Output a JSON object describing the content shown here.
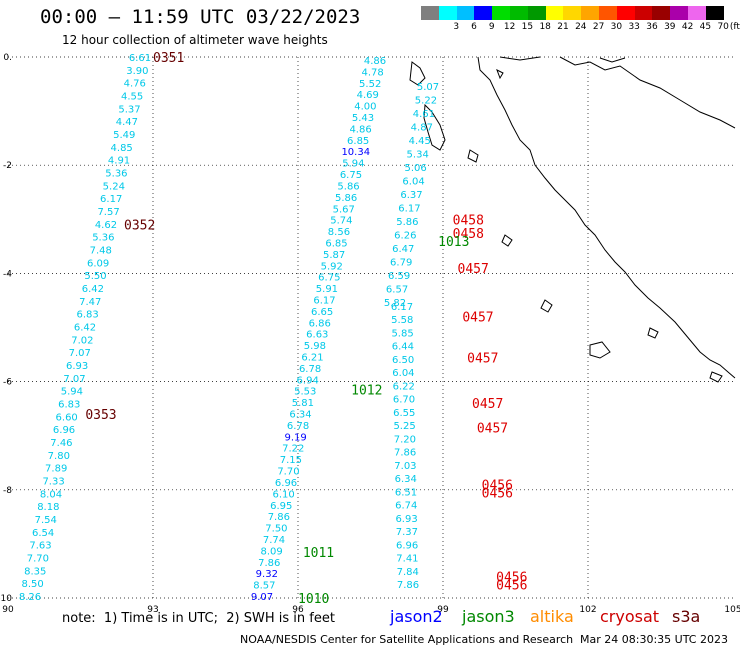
{
  "title": "00:00 — 11:59 UTC 03/22/2023",
  "subtitle": "12 hour collection of altimeter wave heights",
  "legend": {
    "unit": "(ft)",
    "bins": [
      {
        "label": "",
        "color": "#7f7f7f"
      },
      {
        "label": "3",
        "color": "#00ffff"
      },
      {
        "label": "6",
        "color": "#00bfff"
      },
      {
        "label": "9",
        "color": "#0000ff"
      },
      {
        "label": "12",
        "color": "#00dd00"
      },
      {
        "label": "15",
        "color": "#00bb00"
      },
      {
        "label": "18",
        "color": "#009900"
      },
      {
        "label": "21",
        "color": "#ffff00"
      },
      {
        "label": "24",
        "color": "#ffd700"
      },
      {
        "label": "27",
        "color": "#ffa500"
      },
      {
        "label": "30",
        "color": "#ff5500"
      },
      {
        "label": "33",
        "color": "#ff0000"
      },
      {
        "label": "36",
        "color": "#cc0000"
      },
      {
        "label": "39",
        "color": "#990000"
      },
      {
        "label": "42",
        "color": "#aa00aa"
      },
      {
        "label": "45",
        "color": "#ee66ee"
      },
      {
        "label": "70",
        "color": "#000000"
      }
    ]
  },
  "axes": {
    "lon_ticks": [
      "90",
      "93",
      "96",
      "99",
      "102",
      "105"
    ],
    "lat_ticks": [
      "0.",
      "-2",
      "-4",
      "-6",
      "-8",
      "-10"
    ]
  },
  "colors": {
    "jason2": "#0000ff",
    "jason3": "#008800",
    "altika": "#ff8c00",
    "cryosat": "#cc0000",
    "s3a": "#660000",
    "wave_light": "#00c8e8",
    "pass_label_dark": "#660000",
    "pass_label_red": "#dd0000",
    "pass_label_green": "#008800"
  },
  "tracks": [
    {
      "x0": 140,
      "y0": 57,
      "x1": 30,
      "y1": 596,
      "values": [
        "6.61",
        "3.90",
        "4.76",
        "4.55",
        "5.37",
        "4.47",
        "5.49",
        "4.85",
        "4.91",
        "5.36",
        "5.24",
        "6.17",
        "7.57",
        "4.62",
        "5.36",
        "7.48",
        "6.09",
        "5.50",
        "6.42",
        "7.47",
        "6.83",
        "6.42",
        "7.02",
        "7.07",
        "6.93",
        "7.07",
        "5.94",
        "6.83",
        "6.60",
        "6.96",
        "7.46",
        "7.80",
        "7.89",
        "7.33",
        "8.04",
        "8.18",
        "7.54",
        "6.54",
        "7.63",
        "7.70",
        "8.35",
        "8.50",
        "8.26"
      ]
    },
    {
      "x0": 375,
      "y0": 60,
      "x1": 262,
      "y1": 596,
      "values": [
        "4.86",
        "4.78",
        "5.52",
        "4.69",
        "4.00",
        "5.43",
        "4.86",
        "6.85",
        "10.34",
        "5.94",
        "6.75",
        "5.86",
        "5.86",
        "5.67",
        "5.74",
        "8.56",
        "6.85",
        "5.87",
        "5.92",
        "6.75",
        "5.91",
        "6.17",
        "6.65",
        "6.86",
        "6.63",
        "5.98",
        "6.21",
        "6.78",
        "6.94",
        "5.53",
        "5.81",
        "6.34",
        "6.78",
        "9.19",
        "7.22",
        "7.15",
        "7.70",
        "6.96",
        "6.10",
        "6.95",
        "7.86",
        "7.50",
        "7.74",
        "8.09",
        "7.86",
        "9.32",
        "8.57",
        "9.07"
      ]
    },
    {
      "x0": 428,
      "y0": 86,
      "x1": 395,
      "y1": 302,
      "values": [
        "5.07",
        "5.22",
        "4.61",
        "4.87",
        "4.45",
        "5.34",
        "5.06",
        "6.04",
        "6.37",
        "6.17",
        "5.86",
        "6.26",
        "6.47",
        "6.79",
        "6.59",
        "6.57",
        "5.82"
      ]
    },
    {
      "x0": 402,
      "y0": 306,
      "x1": 408,
      "y1": 584,
      "values": [
        "6.17",
        "5.58",
        "5.85",
        "6.44",
        "6.50",
        "6.04",
        "6.22",
        "6.70",
        "6.55",
        "5.25",
        "7.20",
        "7.86",
        "7.03",
        "6.34",
        "6.51",
        "6.74",
        "6.93",
        "7.37",
        "6.96",
        "7.41",
        "7.84",
        "7.86"
      ]
    }
  ],
  "pass_labels": [
    {
      "text": "0351",
      "lon": 93.0,
      "lat": 0.0,
      "kind": "dark"
    },
    {
      "text": "0352",
      "lon": 92.4,
      "lat": -3.1,
      "kind": "dark"
    },
    {
      "text": "0353",
      "lon": 91.6,
      "lat": -6.6,
      "kind": "dark"
    },
    {
      "text": "0458",
      "lon": 99.2,
      "lat": -3.0,
      "kind": "red"
    },
    {
      "text": "0458",
      "lon": 99.2,
      "lat": -3.25,
      "kind": "red"
    },
    {
      "text": "1013",
      "lon": 98.9,
      "lat": -3.4,
      "kind": "green"
    },
    {
      "text": "0457",
      "lon": 99.3,
      "lat": -3.9,
      "kind": "red"
    },
    {
      "text": "0457",
      "lon": 99.4,
      "lat": -4.8,
      "kind": "red"
    },
    {
      "text": "0457",
      "lon": 99.5,
      "lat": -5.55,
      "kind": "red"
    },
    {
      "text": "1012",
      "lon": 97.1,
      "lat": -6.15,
      "kind": "green"
    },
    {
      "text": "0457",
      "lon": 99.6,
      "lat": -6.4,
      "kind": "red"
    },
    {
      "text": "0457",
      "lon": 99.7,
      "lat": -6.85,
      "kind": "red"
    },
    {
      "text": "0456",
      "lon": 99.8,
      "lat": -7.9,
      "kind": "red"
    },
    {
      "text": "0456",
      "lon": 99.8,
      "lat": -8.05,
      "kind": "red"
    },
    {
      "text": "1011",
      "lon": 96.1,
      "lat": -9.15,
      "kind": "green"
    },
    {
      "text": "0456",
      "lon": 100.1,
      "lat": -9.6,
      "kind": "red"
    },
    {
      "text": "0456",
      "lon": 100.1,
      "lat": -9.75,
      "kind": "red"
    },
    {
      "text": "1010",
      "lon": 96.0,
      "lat": -10.0,
      "kind": "green"
    }
  ],
  "footer": {
    "note": "note:  1) Time is in UTC;  2) SWH is in feet",
    "jason2": "jason2",
    "jason3": "jason3",
    "altika": "altika",
    "cryosat": "cryosat",
    "s3a": "s3a",
    "credit": "NOAA/NESDIS Center for Satellite Applications and Research",
    "timestamp": "Mar 24 08:30:35 UTC 2023"
  }
}
